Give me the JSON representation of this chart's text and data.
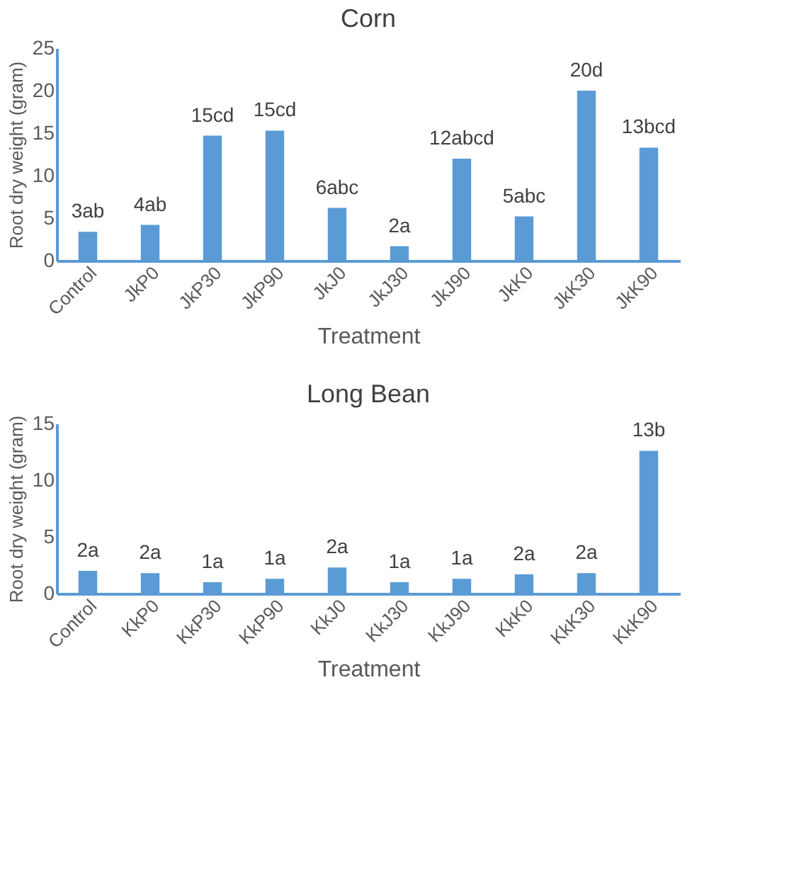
{
  "chart_data": [
    {
      "type": "bar",
      "title": "Corn",
      "xlabel": "Treatment",
      "ylabel": "Root dry weight (gram)",
      "categories": [
        "Control",
        "JkP0",
        "JkP30",
        "JkP90",
        "JkJ0",
        "JkJ30",
        "JkJ90",
        "JkK0",
        "JkK30",
        "JkK90"
      ],
      "values": [
        3.4,
        4.2,
        14.7,
        15.3,
        6.2,
        1.7,
        12.0,
        5.2,
        20.0,
        13.3
      ],
      "value_labels": [
        "3ab",
        "4ab",
        "15cd",
        "15cd",
        "6abc",
        "2a",
        "12abcd",
        "5abc",
        "20d",
        "13bcd"
      ],
      "color": "#5b9bd5",
      "ylim": [
        0,
        25
      ],
      "yticks": [
        0,
        5,
        10,
        15,
        20,
        25
      ],
      "grid": false
    },
    {
      "type": "bar",
      "title": "Long Bean",
      "xlabel": "Treatment",
      "ylabel": "Root dry weight (gram)",
      "categories": [
        "Control",
        "KkP0",
        "KkP30",
        "KkP90",
        "KkJ0",
        "KkJ30",
        "KkJ90",
        "KkK0",
        "KkK30",
        "KkK90"
      ],
      "values": [
        2.0,
        1.8,
        1.0,
        1.3,
        2.3,
        1.0,
        1.3,
        1.7,
        1.8,
        12.6
      ],
      "value_labels": [
        "2a",
        "2a",
        "1a",
        "1a",
        "2a",
        "1a",
        "1a",
        "2a",
        "2a",
        "13b"
      ],
      "color": "#5b9bd5",
      "ylim": [
        0,
        15
      ],
      "yticks": [
        0,
        5,
        10,
        15
      ],
      "grid": false
    }
  ]
}
